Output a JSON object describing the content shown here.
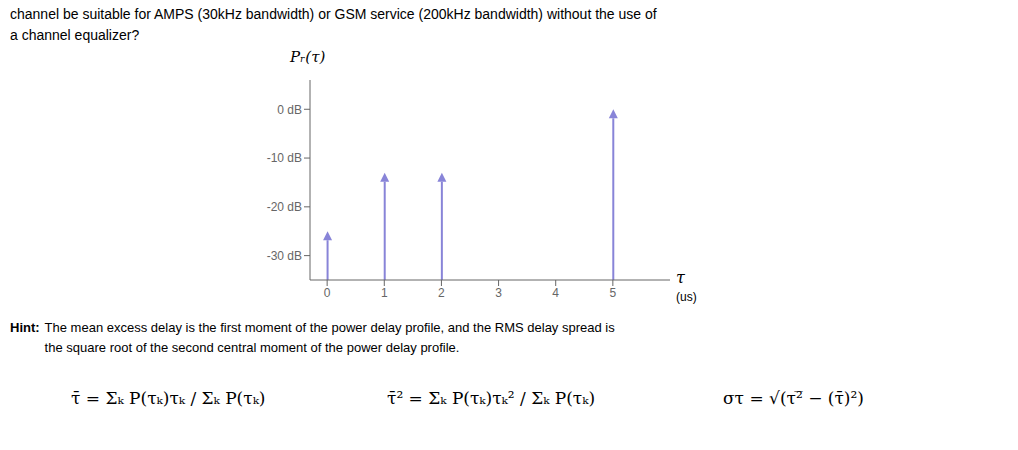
{
  "chart_data": {
    "type": "stem",
    "title": "channel be suitable for AMPS (30kHz bandwidth) or GSM service (200kHz bandwidth) without the use of\na channel equalizer?",
    "x": [
      0,
      1,
      2,
      5
    ],
    "values": [
      -25,
      -13,
      -13,
      0
    ],
    "color": "#8884d8",
    "xlabel": "τ",
    "ylabel": "Pᵣ(τ)",
    "xlim": [
      -0.3,
      6.0
    ],
    "ylim": [
      -35,
      6
    ],
    "xticks": [
      0,
      1,
      2,
      3,
      4,
      5
    ],
    "yticks": [
      {
        "value": 0,
        "label": "0 dB"
      },
      {
        "value": -10,
        "label": "-10 dB"
      },
      {
        "value": -20,
        "label": "-20 dB"
      },
      {
        "value": -30,
        "label": "-30 dB"
      }
    ],
    "annotations": [
      "(us)",
      "Hint:",
      "The mean excess delay is the first moment of the power delay profile, and the RMS delay spread is\nthe square root of the second central moment of the power delay profile.",
      "τ̄ = Σₖ P(τₖ)τₖ / Σₖ P(τₖ)",
      "τ̄² = Σₖ P(τₖ)τₖ² / Σₖ P(τₖ)",
      "στ = √(τ²̅ − (τ̄)²)"
    ]
  }
}
